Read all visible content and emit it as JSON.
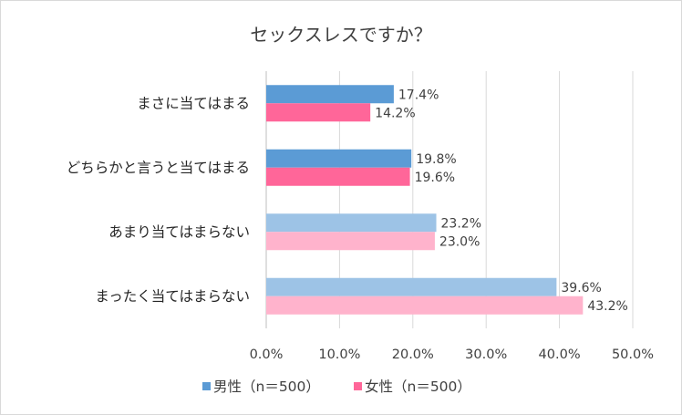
{
  "chart_data": {
    "type": "bar",
    "orientation": "horizontal",
    "title": "セックスレスですか？",
    "categories": [
      "まさに当てはまる",
      "どちらかと言うと当てはまる",
      "あまり当てはまらない",
      "まったく当てはまらない"
    ],
    "series": [
      {
        "name": "男性（n＝500）",
        "values": [
          17.4,
          19.8,
          23.2,
          39.6
        ],
        "value_labels": [
          "17.4%",
          "19.8%",
          "23.2%",
          "39.6%"
        ],
        "colors": [
          "#5b9bd5",
          "#5b9bd5",
          "#9dc3e6",
          "#9dc3e6"
        ],
        "legend_color": "#5b9bd5"
      },
      {
        "name": "女性（n＝500）",
        "values": [
          14.2,
          19.6,
          23.0,
          43.2
        ],
        "value_labels": [
          "14.2%",
          "19.6%",
          "23.0%",
          "43.2%"
        ],
        "colors": [
          "#ff6699",
          "#ff6699",
          "#ffb3cc",
          "#ffb3cc"
        ],
        "legend_color": "#ff6699"
      }
    ],
    "xlim": [
      0,
      50
    ],
    "xticks": [
      0,
      10,
      20,
      30,
      40,
      50
    ],
    "xtick_labels": [
      "0.0%",
      "10.0%",
      "20.0%",
      "30.0%",
      "40.0%",
      "50.0%"
    ],
    "xlabel": "",
    "ylabel": "",
    "grid": "vertical",
    "grid_color": "#d9d9d9",
    "legend": "bottom"
  }
}
